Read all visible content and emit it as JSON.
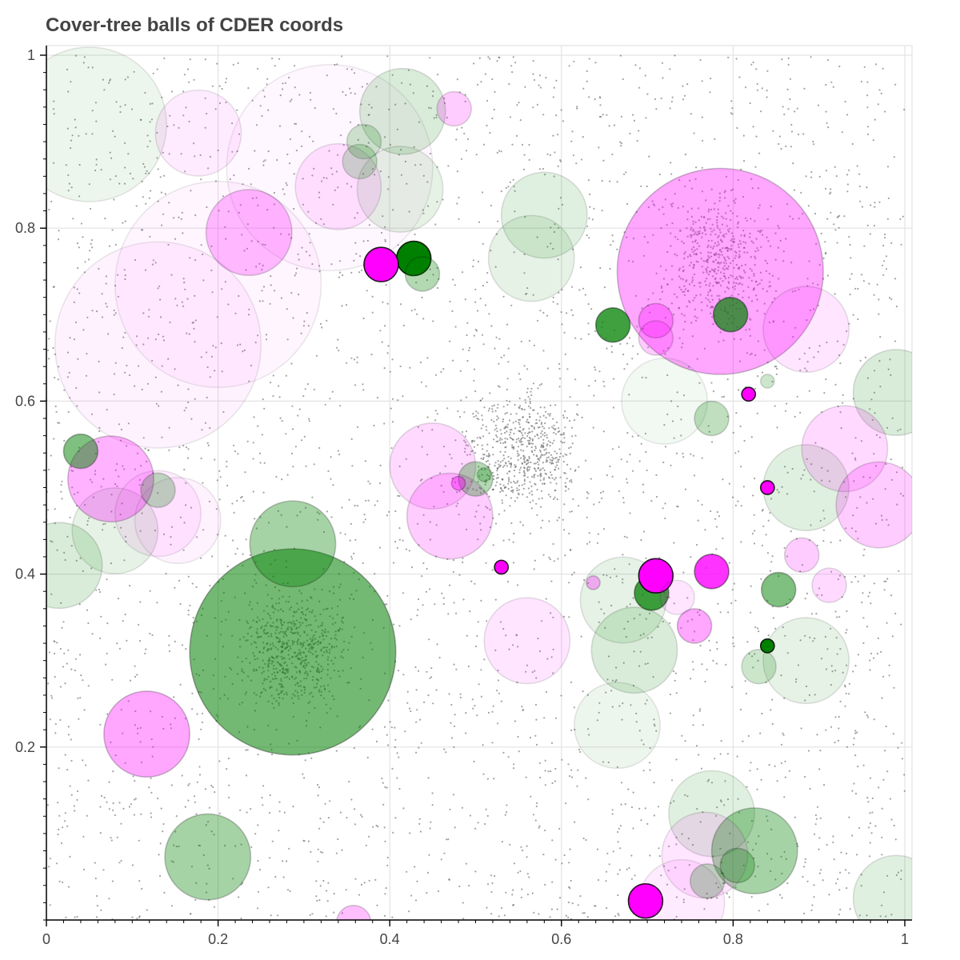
{
  "chart_data": {
    "type": "scatter",
    "title": "Cover-tree balls of CDER coords",
    "xlabel": "",
    "ylabel": "",
    "xlim": [
      0,
      1.0
    ],
    "ylim": [
      0,
      1.0
    ],
    "x_ticks": [
      0,
      0.2,
      0.4,
      0.6,
      0.8,
      1
    ],
    "y_ticks": [
      0.2,
      0.4,
      0.6,
      0.8,
      1
    ],
    "x_tick_labels": [
      "0",
      "0.2",
      "0.4",
      "0.6",
      "0.8",
      "1"
    ],
    "y_tick_labels": [
      "0.2",
      "0.4",
      "0.6",
      "0.8",
      "1"
    ],
    "grid": true,
    "legend": "none",
    "colors": {
      "green": "#008000",
      "magenta": "#ff00ff",
      "points": "#555555",
      "grid": "#e3e3e3"
    },
    "series": [
      {
        "values": [
          {
            "x": 0.05,
            "y": 0.92,
            "r": 0.09,
            "alpha": 0.07
          },
          {
            "x": 0.415,
            "y": 0.935,
            "r": 0.05,
            "alpha": 0.15
          },
          {
            "x": 0.37,
            "y": 0.9,
            "r": 0.02,
            "alpha": 0.2
          },
          {
            "x": 0.365,
            "y": 0.877,
            "r": 0.02,
            "alpha": 0.2
          },
          {
            "x": 0.412,
            "y": 0.845,
            "r": 0.05,
            "alpha": 0.1
          },
          {
            "x": 0.58,
            "y": 0.815,
            "r": 0.05,
            "alpha": 0.12
          },
          {
            "x": 0.565,
            "y": 0.765,
            "r": 0.05,
            "alpha": 0.1
          },
          {
            "x": 0.428,
            "y": 0.765,
            "r": 0.02,
            "alpha": 1.0
          },
          {
            "x": 0.438,
            "y": 0.747,
            "r": 0.02,
            "alpha": 0.3
          },
          {
            "x": 0.66,
            "y": 0.688,
            "r": 0.02,
            "alpha": 0.75
          },
          {
            "x": 0.797,
            "y": 0.7,
            "r": 0.02,
            "alpha": 0.7
          },
          {
            "x": 0.84,
            "y": 0.623,
            "r": 0.008,
            "alpha": 0.2
          },
          {
            "x": 0.775,
            "y": 0.58,
            "r": 0.02,
            "alpha": 0.25
          },
          {
            "x": 0.99,
            "y": 0.61,
            "r": 0.05,
            "alpha": 0.15
          },
          {
            "x": 0.72,
            "y": 0.6,
            "r": 0.05,
            "alpha": 0.05
          },
          {
            "x": 0.04,
            "y": 0.542,
            "r": 0.02,
            "alpha": 0.5
          },
          {
            "x": 0.13,
            "y": 0.497,
            "r": 0.02,
            "alpha": 0.25
          },
          {
            "x": 0.08,
            "y": 0.45,
            "r": 0.05,
            "alpha": 0.1
          },
          {
            "x": 0.015,
            "y": 0.41,
            "r": 0.05,
            "alpha": 0.15
          },
          {
            "x": 0.287,
            "y": 0.435,
            "r": 0.05,
            "alpha": 0.35
          },
          {
            "x": 0.287,
            "y": 0.31,
            "r": 0.12,
            "alpha": 0.55
          },
          {
            "x": 0.5,
            "y": 0.51,
            "r": 0.02,
            "alpha": 0.3
          },
          {
            "x": 0.51,
            "y": 0.515,
            "r": 0.008,
            "alpha": 0.25
          },
          {
            "x": 0.885,
            "y": 0.5,
            "r": 0.05,
            "alpha": 0.12
          },
          {
            "x": 0.672,
            "y": 0.37,
            "r": 0.05,
            "alpha": 0.1
          },
          {
            "x": 0.705,
            "y": 0.378,
            "r": 0.02,
            "alpha": 0.75
          },
          {
            "x": 0.685,
            "y": 0.312,
            "r": 0.05,
            "alpha": 0.15
          },
          {
            "x": 0.853,
            "y": 0.382,
            "r": 0.02,
            "alpha": 0.5
          },
          {
            "x": 0.84,
            "y": 0.317,
            "r": 0.008,
            "alpha": 1.0
          },
          {
            "x": 0.83,
            "y": 0.293,
            "r": 0.02,
            "alpha": 0.2
          },
          {
            "x": 0.885,
            "y": 0.3,
            "r": 0.05,
            "alpha": 0.1
          },
          {
            "x": 0.665,
            "y": 0.225,
            "r": 0.05,
            "alpha": 0.07
          },
          {
            "x": 0.188,
            "y": 0.073,
            "r": 0.05,
            "alpha": 0.35
          },
          {
            "x": 0.775,
            "y": 0.123,
            "r": 0.05,
            "alpha": 0.12
          },
          {
            "x": 0.825,
            "y": 0.08,
            "r": 0.05,
            "alpha": 0.35
          },
          {
            "x": 0.77,
            "y": 0.045,
            "r": 0.02,
            "alpha": 0.25
          },
          {
            "x": 0.805,
            "y": 0.063,
            "r": 0.02,
            "alpha": 0.3
          },
          {
            "x": 0.99,
            "y": 0.025,
            "r": 0.05,
            "alpha": 0.12
          }
        ]
      },
      {
        "values": [
          {
            "x": 0.2,
            "y": 0.735,
            "r": 0.12,
            "alpha": 0.04
          },
          {
            "x": 0.13,
            "y": 0.665,
            "r": 0.12,
            "alpha": 0.05
          },
          {
            "x": 0.33,
            "y": 0.87,
            "r": 0.12,
            "alpha": 0.03
          },
          {
            "x": 0.177,
            "y": 0.91,
            "r": 0.05,
            "alpha": 0.08
          },
          {
            "x": 0.475,
            "y": 0.938,
            "r": 0.02,
            "alpha": 0.2
          },
          {
            "x": 0.34,
            "y": 0.848,
            "r": 0.05,
            "alpha": 0.1
          },
          {
            "x": 0.236,
            "y": 0.795,
            "r": 0.05,
            "alpha": 0.25
          },
          {
            "x": 0.39,
            "y": 0.758,
            "r": 0.02,
            "alpha": 1.0
          },
          {
            "x": 0.785,
            "y": 0.75,
            "r": 0.12,
            "alpha": 0.35
          },
          {
            "x": 0.71,
            "y": 0.693,
            "r": 0.02,
            "alpha": 0.3
          },
          {
            "x": 0.71,
            "y": 0.673,
            "r": 0.02,
            "alpha": 0.2
          },
          {
            "x": 0.885,
            "y": 0.683,
            "r": 0.05,
            "alpha": 0.1
          },
          {
            "x": 0.818,
            "y": 0.608,
            "r": 0.008,
            "alpha": 1.0
          },
          {
            "x": 0.075,
            "y": 0.51,
            "r": 0.05,
            "alpha": 0.3
          },
          {
            "x": 0.13,
            "y": 0.47,
            "r": 0.05,
            "alpha": 0.07
          },
          {
            "x": 0.45,
            "y": 0.525,
            "r": 0.05,
            "alpha": 0.15
          },
          {
            "x": 0.47,
            "y": 0.467,
            "r": 0.05,
            "alpha": 0.2
          },
          {
            "x": 0.48,
            "y": 0.505,
            "r": 0.008,
            "alpha": 0.4
          },
          {
            "x": 0.93,
            "y": 0.545,
            "r": 0.05,
            "alpha": 0.15
          },
          {
            "x": 0.97,
            "y": 0.48,
            "r": 0.05,
            "alpha": 0.2
          },
          {
            "x": 0.84,
            "y": 0.5,
            "r": 0.008,
            "alpha": 1.0
          },
          {
            "x": 0.53,
            "y": 0.408,
            "r": 0.008,
            "alpha": 1.0
          },
          {
            "x": 0.637,
            "y": 0.39,
            "r": 0.008,
            "alpha": 0.3
          },
          {
            "x": 0.71,
            "y": 0.398,
            "r": 0.02,
            "alpha": 1.0
          },
          {
            "x": 0.775,
            "y": 0.403,
            "r": 0.02,
            "alpha": 0.8
          },
          {
            "x": 0.755,
            "y": 0.34,
            "r": 0.02,
            "alpha": 0.35
          },
          {
            "x": 0.735,
            "y": 0.373,
            "r": 0.02,
            "alpha": 0.1
          },
          {
            "x": 0.88,
            "y": 0.422,
            "r": 0.02,
            "alpha": 0.2
          },
          {
            "x": 0.912,
            "y": 0.387,
            "r": 0.02,
            "alpha": 0.15
          },
          {
            "x": 0.56,
            "y": 0.323,
            "r": 0.05,
            "alpha": 0.1
          },
          {
            "x": 0.117,
            "y": 0.215,
            "r": 0.05,
            "alpha": 0.35
          },
          {
            "x": 0.153,
            "y": 0.462,
            "r": 0.05,
            "alpha": 0.05
          },
          {
            "x": 0.358,
            "y": -0.003,
            "r": 0.02,
            "alpha": 0.25
          },
          {
            "x": 0.767,
            "y": 0.075,
            "r": 0.05,
            "alpha": 0.1
          },
          {
            "x": 0.74,
            "y": 0.02,
            "r": 0.05,
            "alpha": 0.08
          },
          {
            "x": 0.698,
            "y": 0.022,
            "r": 0.02,
            "alpha": 1.0
          }
        ]
      },
      {
        "values": [
          {
            "cx": 0.555,
            "cy": 0.54,
            "w": 0.1,
            "h": 0.1,
            "count": 600,
            "size": 1.1,
            "opacity": 0.55
          },
          {
            "cx": 0.785,
            "cy": 0.76,
            "w": 0.09,
            "h": 0.11,
            "count": 450,
            "size": 1.2,
            "opacity": 0.5
          },
          {
            "cx": 0.287,
            "cy": 0.315,
            "w": 0.09,
            "h": 0.09,
            "count": 550,
            "size": 1.2,
            "opacity": 0.5
          }
        ]
      }
    ]
  }
}
